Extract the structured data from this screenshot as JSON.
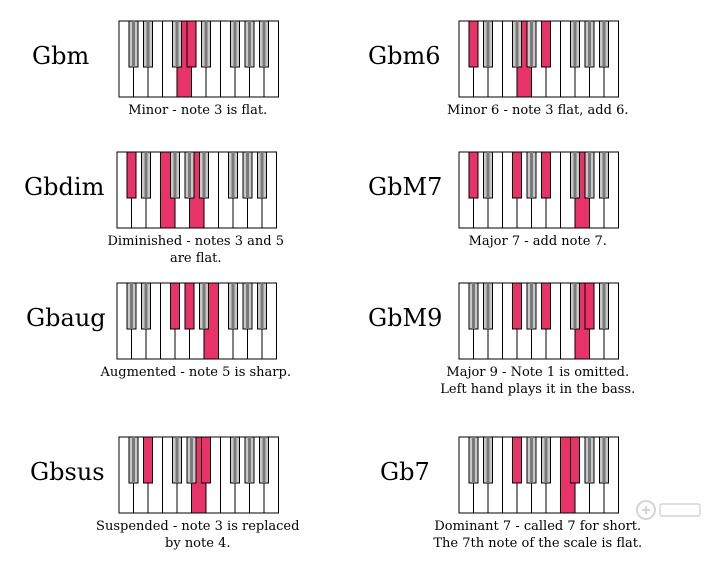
{
  "chords": [
    {
      "id": "gbm",
      "name": "Gbm",
      "caption": [
        "Minor - note 3 is flat."
      ],
      "red_keys": [
        "b3",
        "w4"
      ]
    },
    {
      "id": "gbm6",
      "name": "Gbm6",
      "caption": [
        "Minor 6 - note 3 flat, add 6."
      ],
      "red_keys": [
        "b0",
        "w4",
        "b4"
      ]
    },
    {
      "id": "gbdim",
      "name": "Gbdim",
      "caption": [
        "Diminished - notes 3 and 5",
        "are flat."
      ],
      "red_keys": [
        "b0",
        "w3",
        "w5"
      ]
    },
    {
      "id": "gbm7",
      "name": "GbM7",
      "caption": [
        "Major 7 - add note 7."
      ],
      "red_keys": [
        "b0",
        "b2",
        "b4",
        "w8"
      ]
    },
    {
      "id": "gbaug",
      "name": "Gbaug",
      "caption": [
        "Augmented - note 5 is sharp."
      ],
      "red_keys": [
        "b2",
        "b3",
        "w6"
      ]
    },
    {
      "id": "gbm9",
      "name": "GbM9",
      "caption": [
        "Major 9 - Note 1 is omitted.",
        "Left hand plays it in the bass."
      ],
      "red_keys": [
        "b2",
        "b4",
        "w8",
        "b6"
      ]
    },
    {
      "id": "gbsus",
      "name": "Gbsus",
      "caption": [
        "Suspended - note 3 is replaced",
        "by note 4."
      ],
      "red_keys": [
        "b1",
        "w5",
        "b4"
      ]
    },
    {
      "id": "gb7",
      "name": "Gb7",
      "caption": [
        "Dominant 7 - called 7 for short.",
        "The 7th note of the scale is flat."
      ],
      "red_keys": [
        "b2",
        "b5",
        "w7"
      ]
    }
  ],
  "colors": {
    "highlight": "#e8336a",
    "black_key": "#c8c8c8",
    "black_key_band": "#7a7a7a",
    "white_key": "#ffffff",
    "outline": "#000000"
  },
  "watermark_icon": "watermark-logo-icon"
}
